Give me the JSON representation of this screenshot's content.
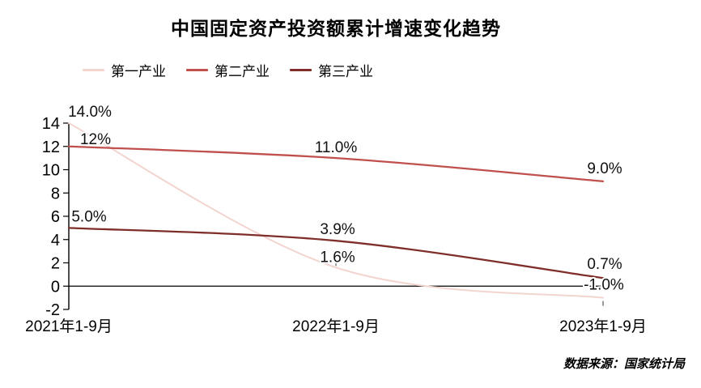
{
  "page": {
    "title": "中国固定资产投资额累计增速变化趋势",
    "source_note": "数据来源：国家统计局"
  },
  "chart_data": {
    "type": "line",
    "title": "中国固定资产投资额累计增速变化趋势",
    "categories": [
      "2021年1-9月",
      "2022年1-9月",
      "2023年1-9月"
    ],
    "series": [
      {
        "name": "第一产业",
        "color": "#f3d5d0",
        "values": [
          14.0,
          1.6,
          -1.0
        ],
        "point_labels": [
          "14.0%",
          "1.6%",
          "-1.0%"
        ]
      },
      {
        "name": "第二产业",
        "color": "#c0504d",
        "values": [
          12.0,
          11.0,
          9.0
        ],
        "point_labels": [
          "12%",
          "11.0%",
          "9.0%"
        ]
      },
      {
        "name": "第三产业",
        "color": "#7f2e29",
        "values": [
          5.0,
          3.9,
          0.7
        ],
        "point_labels": [
          "5.0%",
          "3.9%",
          "0.7%"
        ]
      }
    ],
    "ylim": [
      -2,
      14
    ],
    "ytick_step": 2,
    "grid": false,
    "smooth": true,
    "legend_position": "top-left",
    "axis_color": "#000000",
    "label_color": "#111111",
    "source": "数据来源：国家统计局"
  }
}
